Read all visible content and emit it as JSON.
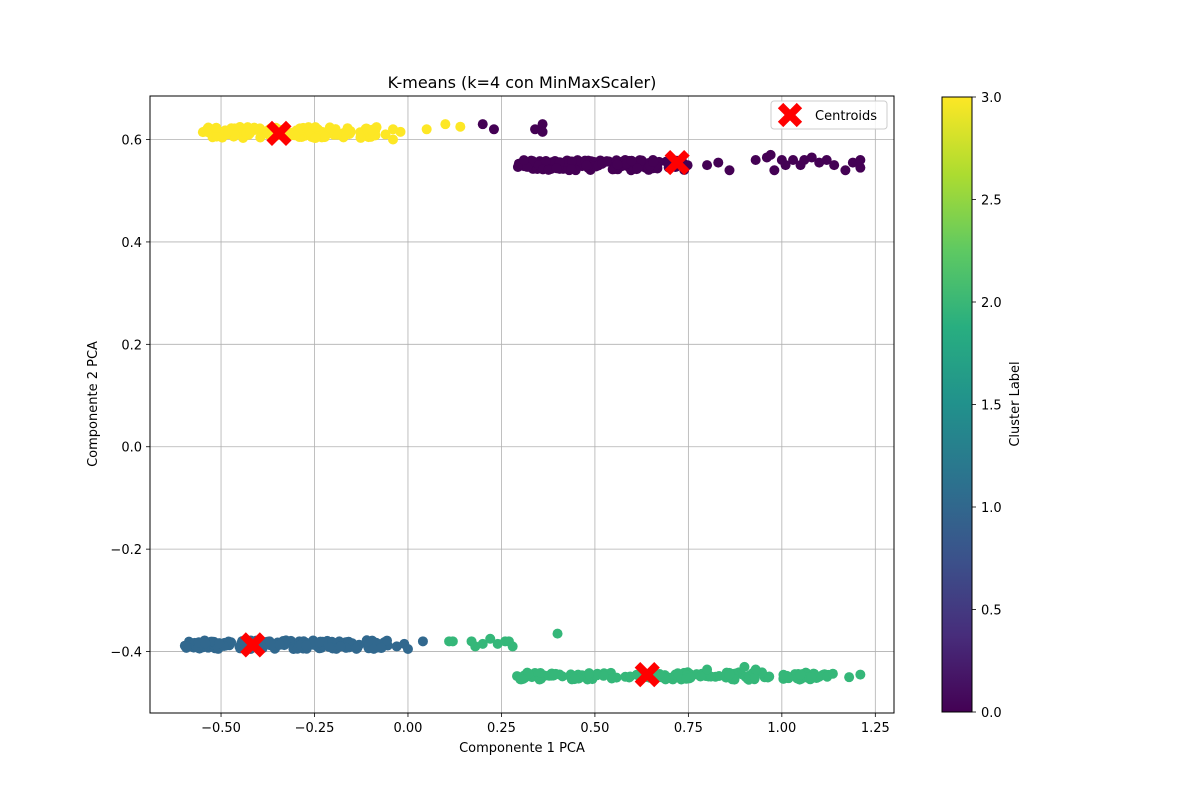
{
  "chart_data": {
    "type": "scatter",
    "title": "K-means (k=4 con MinMaxScaler)",
    "xlabel": "Componente 1 PCA",
    "ylabel": "Componente 2 PCA",
    "xlim": [
      -0.69,
      1.3
    ],
    "ylim": [
      -0.52,
      0.685
    ],
    "xticks": [
      -0.5,
      -0.25,
      0.0,
      0.25,
      0.5,
      0.75,
      1.0,
      1.25
    ],
    "xtick_labels": [
      "−0.50",
      "−0.25",
      "0.00",
      "0.25",
      "0.50",
      "0.75",
      "1.00",
      "1.25"
    ],
    "yticks": [
      -0.4,
      -0.2,
      0.0,
      0.2,
      0.4,
      0.6
    ],
    "ytick_labels": [
      "−0.4",
      "−0.2",
      "0.0",
      "0.2",
      "0.4",
      "0.6"
    ],
    "grid": true,
    "legend_position": "upper right",
    "legend": [
      {
        "label": "Centroids",
        "marker": "X",
        "color": "#ff0000"
      }
    ],
    "colorbar": {
      "label": "Cluster Label",
      "range": [
        0.0,
        3.0
      ],
      "ticks": [
        0.0,
        0.5,
        1.0,
        1.5,
        2.0,
        2.5,
        3.0
      ],
      "tick_labels": [
        "0.0",
        "0.5",
        "1.0",
        "1.5",
        "2.0",
        "2.5",
        "3.0"
      ],
      "colormap": "viridis"
    },
    "clusters": [
      {
        "label": 0,
        "color": "#440154",
        "dense_x": [
          0.29,
          0.75
        ],
        "dense_y": [
          0.54,
          0.56
        ],
        "sparse": [
          [
            0.2,
            0.63
          ],
          [
            0.23,
            0.62
          ],
          [
            0.34,
            0.62
          ],
          [
            0.36,
            0.63
          ],
          [
            0.36,
            0.615
          ],
          [
            0.8,
            0.55
          ],
          [
            0.83,
            0.555
          ],
          [
            0.86,
            0.54
          ],
          [
            0.93,
            0.56
          ],
          [
            0.96,
            0.565
          ],
          [
            0.97,
            0.57
          ],
          [
            0.98,
            0.54
          ],
          [
            1.03,
            0.56
          ],
          [
            1.1,
            0.555
          ],
          [
            1.17,
            0.54
          ],
          [
            1.19,
            0.555
          ],
          [
            1.21,
            0.56
          ],
          [
            1.21,
            0.545
          ]
        ],
        "cluster_points": [
          [
            1.0,
            0.56
          ],
          [
            1.05,
            0.55
          ],
          [
            1.08,
            0.565
          ],
          [
            1.12,
            0.56
          ],
          [
            1.14,
            0.55
          ],
          [
            1.01,
            0.55
          ],
          [
            1.06,
            0.56
          ]
        ]
      },
      {
        "label": 1,
        "color": "#31688e",
        "dense_x": [
          -0.6,
          -0.05
        ],
        "dense_y": [
          -0.395,
          -0.378
        ],
        "sparse": [
          [
            -0.03,
            -0.39
          ],
          [
            -0.01,
            -0.385
          ],
          [
            0.0,
            -0.395
          ],
          [
            0.04,
            -0.38
          ]
        ],
        "cluster_points": []
      },
      {
        "label": 2,
        "color": "#35b779",
        "dense_x": [
          0.29,
          1.14
        ],
        "dense_y": [
          -0.455,
          -0.44
        ],
        "sparse": [
          [
            0.11,
            -0.38
          ],
          [
            0.12,
            -0.38
          ],
          [
            0.17,
            -0.38
          ],
          [
            0.18,
            -0.39
          ],
          [
            0.2,
            -0.385
          ],
          [
            0.22,
            -0.375
          ],
          [
            0.24,
            -0.385
          ],
          [
            0.26,
            -0.38
          ],
          [
            0.27,
            -0.38
          ],
          [
            0.28,
            -0.39
          ],
          [
            0.4,
            -0.365
          ],
          [
            0.8,
            -0.435
          ],
          [
            0.86,
            -0.445
          ],
          [
            0.9,
            -0.43
          ],
          [
            0.93,
            -0.435
          ],
          [
            1.18,
            -0.45
          ],
          [
            1.21,
            -0.445
          ]
        ],
        "cluster_points": []
      },
      {
        "label": 3,
        "color": "#fde725",
        "dense_x": [
          -0.55,
          -0.07
        ],
        "dense_y": [
          0.603,
          0.625
        ],
        "sparse": [
          [
            -0.06,
            0.61
          ],
          [
            -0.04,
            0.6
          ],
          [
            -0.04,
            0.62
          ],
          [
            -0.02,
            0.615
          ],
          [
            0.05,
            0.62
          ],
          [
            0.1,
            0.63
          ],
          [
            0.14,
            0.625
          ]
        ],
        "cluster_points": []
      }
    ],
    "centroids": [
      {
        "x": 0.72,
        "y": 0.555
      },
      {
        "x": -0.415,
        "y": -0.387
      },
      {
        "x": 0.64,
        "y": -0.445
      },
      {
        "x": -0.345,
        "y": 0.612
      }
    ]
  }
}
